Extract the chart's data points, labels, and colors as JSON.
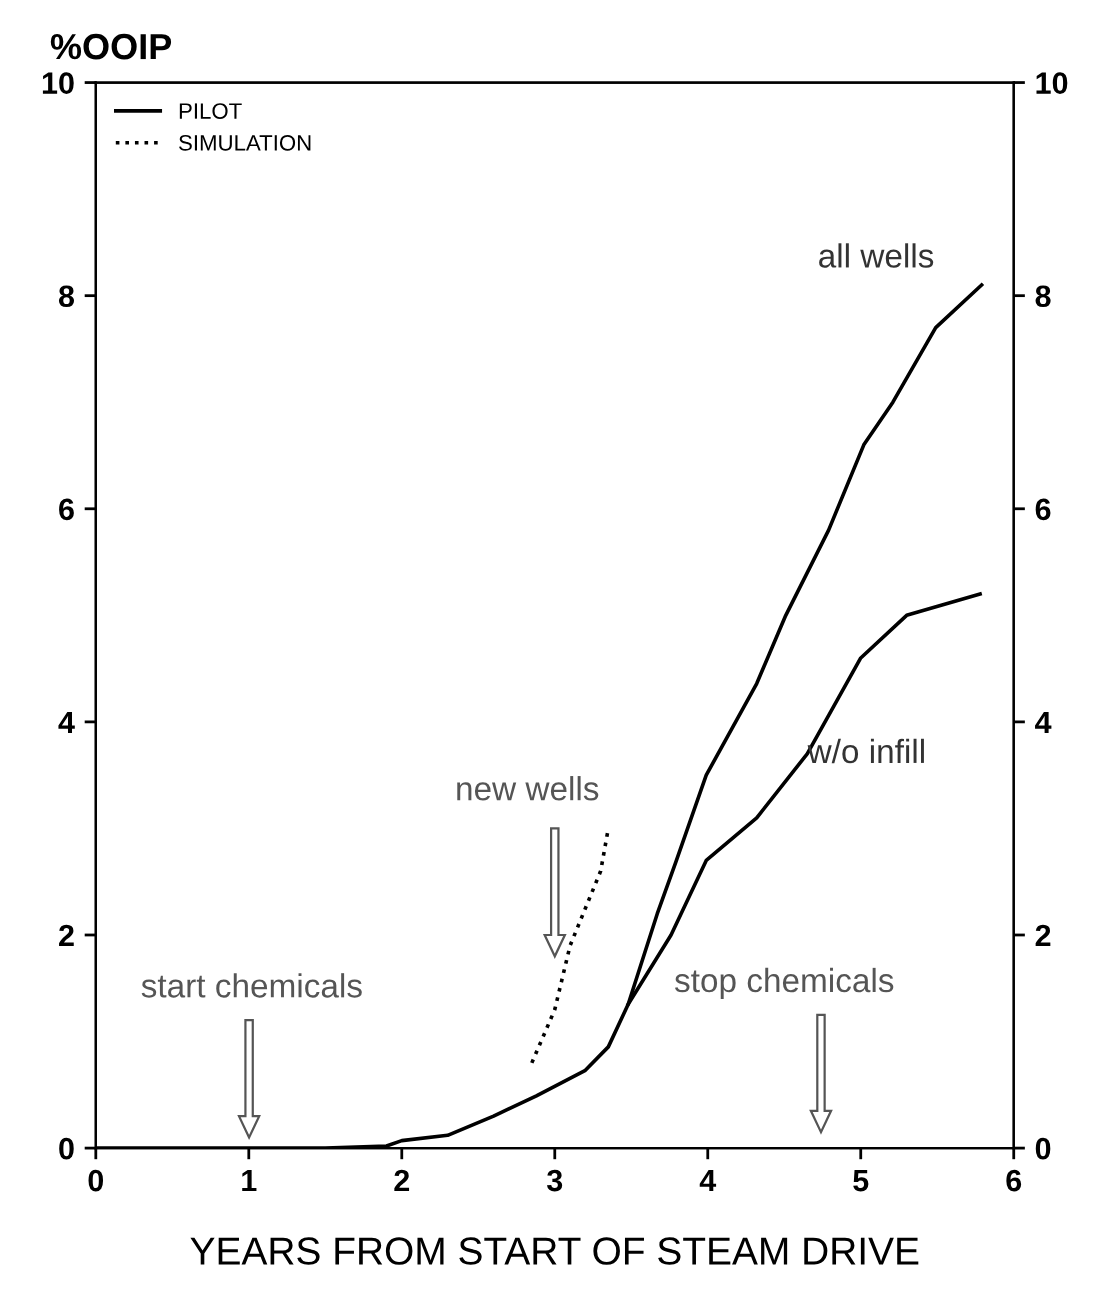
{
  "chart_data": {
    "type": "line",
    "ylabel": "%OOIP",
    "xlabel": "YEARS FROM START OF STEAM DRIVE",
    "xlim": [
      0,
      6
    ],
    "xticks": [
      0,
      1,
      2,
      3,
      4,
      5,
      6
    ],
    "ylim": [
      0,
      10
    ],
    "yticks": [
      0,
      2,
      4,
      6,
      8,
      10
    ],
    "y2lim": [
      0,
      10
    ],
    "y2ticks": [
      0,
      2,
      4,
      6,
      8,
      10
    ],
    "series": [
      {
        "name": "PILOT",
        "color": "#000000",
        "line_style": "solid",
        "x": [
          0,
          1.5,
          1.9,
          2.0,
          2.3,
          2.6,
          2.88,
          3.2,
          3.35,
          3.48,
          3.67,
          3.79,
          3.99,
          4.32,
          4.51,
          4.79,
          5.02,
          5.21,
          5.49,
          5.79
        ],
        "values": [
          0,
          0,
          0.02,
          0.07,
          0.12,
          0.3,
          0.49,
          0.73,
          0.95,
          1.35,
          2.2,
          2.68,
          3.5,
          4.36,
          5.0,
          5.8,
          6.6,
          7.0,
          7.7,
          8.1
        ]
      },
      {
        "color": "#000000",
        "line_style": "solid",
        "x": [
          3.48,
          3.76,
          3.99,
          4.32,
          4.65,
          5.0,
          5.3,
          5.78
        ],
        "values": [
          1.35,
          2.0,
          2.7,
          3.1,
          3.7,
          4.6,
          5.0,
          5.2
        ]
      },
      {
        "name": "SIMULATION",
        "color": "#000000",
        "line_style": "dotted",
        "x": [
          2.85,
          3.0,
          3.1,
          3.3,
          3.35
        ],
        "values": [
          0.8,
          1.3,
          1.9,
          2.6,
          3.0
        ]
      }
    ],
    "annotations": [
      "all wells",
      "w/o infill",
      "start chemicals",
      "new wells",
      "stop chemicals"
    ],
    "legend": "top left"
  }
}
